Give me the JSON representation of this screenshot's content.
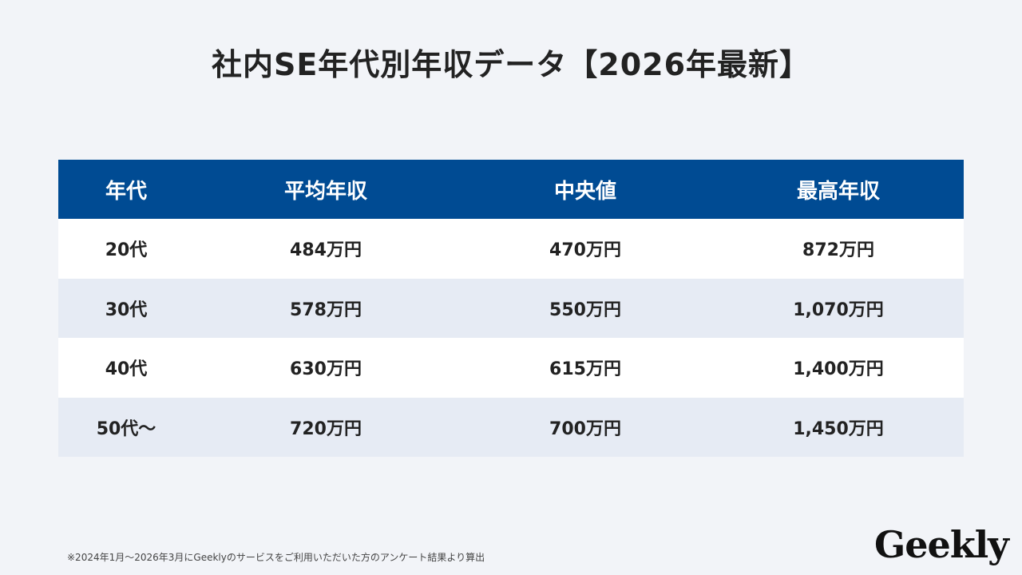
{
  "title": "社内SE年代別年収データ【2026年最新】",
  "table": {
    "headers": [
      "年代",
      "平均年収",
      "中央値",
      "最高年収"
    ],
    "rows": [
      [
        "20代",
        "484万円",
        "470万円",
        "872万円"
      ],
      [
        "30代",
        "578万円",
        "550万円",
        "1,070万円"
      ],
      [
        "40代",
        "630万円",
        "615万円",
        "1,400万円"
      ],
      [
        "50代～",
        "720万円",
        "700万円",
        "1,450万円"
      ]
    ]
  },
  "note": "※2024年1月～2026年3月にGeeklyのサービスをご利用いただいた方のアンケート結果より算出",
  "logo": "Geekly",
  "colors": {
    "header_bg": "#004b93",
    "row_alt_bg": "#e6ebf4",
    "page_bg": "#f2f4f8"
  }
}
